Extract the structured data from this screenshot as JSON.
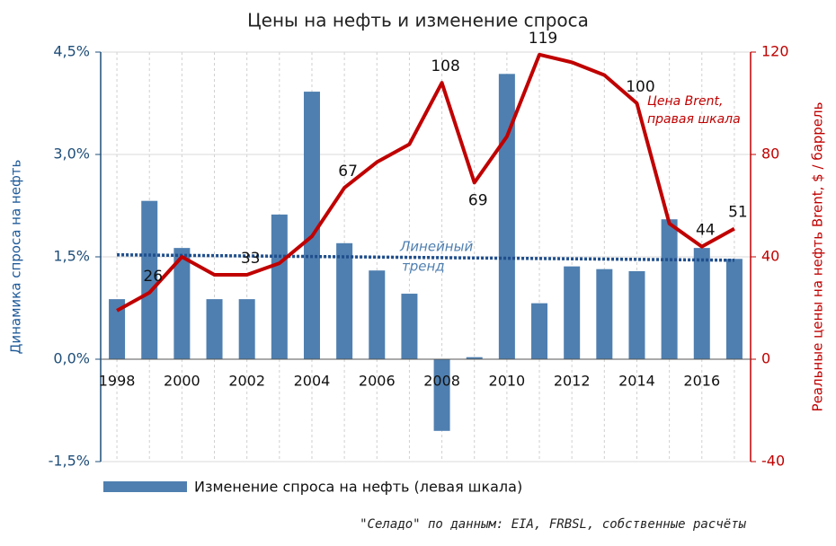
{
  "chart_data": {
    "type": "bar-line",
    "title": "Цены на нефть и изменение спроса",
    "ylabel": "Динамика спроса на нефть",
    "y2label": "Реальные цены на нефть Brent, $ / баррель",
    "categories": [
      "1998",
      null,
      "2000",
      null,
      "2002",
      null,
      "2004",
      null,
      "2006",
      null,
      "2008",
      null,
      "2010",
      null,
      "2012",
      null,
      "2014",
      null,
      "2016",
      null
    ],
    "series": [
      {
        "name": "Изменение спроса на нефть (левая шкала)",
        "type": "bar",
        "color": "#4f7fb0",
        "values": [
          0.88,
          2.32,
          1.63,
          0.88,
          0.88,
          2.12,
          3.92,
          1.7,
          1.3,
          0.96,
          -1.05,
          0.03,
          4.18,
          0.82,
          1.36,
          1.32,
          1.29,
          2.05,
          1.63,
          1.47
        ]
      },
      {
        "name": "Цена Brent",
        "type": "line",
        "axis": "y2",
        "color": "#c00000",
        "values": [
          19,
          26,
          40,
          33,
          33,
          37.5,
          48,
          67,
          77,
          84,
          108,
          69,
          87,
          119,
          116,
          111,
          100,
          53,
          44,
          51
        ],
        "value_labels": [
          null,
          "26",
          null,
          null,
          "33",
          null,
          null,
          "67",
          null,
          null,
          "108",
          "69",
          null,
          "119",
          null,
          null,
          "100",
          null,
          "44",
          "51"
        ]
      }
    ],
    "trend": {
      "lines": [
        "Линейный",
        "тренд"
      ],
      "color": "#1f4e8c",
      "values": [
        1.53,
        1.45
      ]
    },
    "brent_note": [
      "Цена Brent,",
      "правая шкала"
    ],
    "ylim": [
      -1.5,
      4.5
    ],
    "yticks": [
      {
        "value": -1.5,
        "label": "-1,5%"
      },
      {
        "value": 0,
        "label": "0,0%"
      },
      {
        "value": 1.5,
        "label": "1,5%"
      },
      {
        "value": 3,
        "label": "3,0%"
      },
      {
        "value": 4.5,
        "label": "4,5%"
      }
    ],
    "y2lim": [
      -40,
      120
    ],
    "y2ticks": [
      -40,
      0,
      40,
      80,
      120
    ],
    "grid": true,
    "source": "\"Селадо\" по данным: EIA, FRBSL, собственные расчёты"
  }
}
